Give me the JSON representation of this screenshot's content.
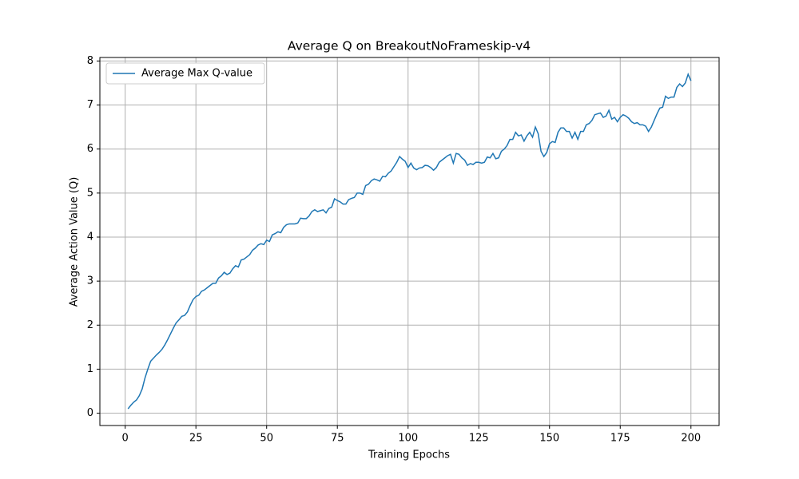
{
  "chart_data": {
    "type": "line",
    "title": "Average Q on BreakoutNoFrameskip-v4",
    "xlabel": "Training Epochs",
    "ylabel": "Average Action Value (Q)",
    "x": [
      1,
      2,
      3,
      4,
      5,
      6,
      7,
      8,
      9,
      10,
      11,
      12,
      13,
      14,
      15,
      16,
      17,
      18,
      19,
      20,
      21,
      22,
      23,
      24,
      25,
      26,
      27,
      28,
      29,
      30,
      31,
      32,
      33,
      34,
      35,
      36,
      37,
      38,
      39,
      40,
      41,
      42,
      43,
      44,
      45,
      46,
      47,
      48,
      49,
      50,
      51,
      52,
      53,
      54,
      55,
      56,
      57,
      58,
      59,
      60,
      61,
      62,
      63,
      64,
      65,
      66,
      67,
      68,
      69,
      70,
      71,
      72,
      73,
      74,
      75,
      76,
      77,
      78,
      79,
      80,
      81,
      82,
      83,
      84,
      85,
      86,
      87,
      88,
      89,
      90,
      91,
      92,
      93,
      94,
      95,
      96,
      97,
      98,
      99,
      100,
      101,
      102,
      103,
      104,
      105,
      106,
      107,
      108,
      109,
      110,
      111,
      112,
      113,
      114,
      115,
      116,
      117,
      118,
      119,
      120,
      121,
      122,
      123,
      124,
      125,
      126,
      127,
      128,
      129,
      130,
      131,
      132,
      133,
      134,
      135,
      136,
      137,
      138,
      139,
      140,
      141,
      142,
      143,
      144,
      145,
      146,
      147,
      148,
      149,
      150,
      151,
      152,
      153,
      154,
      155,
      156,
      157,
      158,
      159,
      160,
      161,
      162,
      163,
      164,
      165,
      166,
      167,
      168,
      169,
      170,
      171,
      172,
      173,
      174,
      175,
      176,
      177,
      178,
      179,
      180,
      181,
      182,
      183,
      184,
      185,
      186,
      187,
      188,
      189,
      190,
      191,
      192,
      193,
      194,
      195,
      196,
      197,
      198,
      199,
      200
    ],
    "series": [
      {
        "name": "Average Max Q-value",
        "color": "#1f77b4",
        "values": [
          0.1,
          0.18,
          0.25,
          0.3,
          0.4,
          0.55,
          0.8,
          1.0,
          1.18,
          1.25,
          1.32,
          1.38,
          1.45,
          1.55,
          1.67,
          1.8,
          1.93,
          2.05,
          2.12,
          2.2,
          2.22,
          2.3,
          2.45,
          2.58,
          2.65,
          2.68,
          2.77,
          2.8,
          2.85,
          2.9,
          2.95,
          2.95,
          3.07,
          3.12,
          3.2,
          3.15,
          3.18,
          3.28,
          3.35,
          3.32,
          3.48,
          3.5,
          3.55,
          3.6,
          3.7,
          3.75,
          3.82,
          3.85,
          3.83,
          3.93,
          3.9,
          4.05,
          4.08,
          4.12,
          4.1,
          4.22,
          4.28,
          4.3,
          4.3,
          4.3,
          4.32,
          4.43,
          4.42,
          4.42,
          4.48,
          4.58,
          4.62,
          4.58,
          4.6,
          4.62,
          4.55,
          4.65,
          4.68,
          4.87,
          4.83,
          4.8,
          4.75,
          4.75,
          4.85,
          4.88,
          4.9,
          5.0,
          5.0,
          4.97,
          5.17,
          5.2,
          5.28,
          5.32,
          5.3,
          5.27,
          5.38,
          5.37,
          5.45,
          5.5,
          5.6,
          5.7,
          5.83,
          5.77,
          5.72,
          5.58,
          5.68,
          5.57,
          5.53,
          5.57,
          5.58,
          5.63,
          5.62,
          5.58,
          5.52,
          5.58,
          5.7,
          5.75,
          5.8,
          5.85,
          5.88,
          5.68,
          5.9,
          5.88,
          5.8,
          5.75,
          5.63,
          5.67,
          5.65,
          5.7,
          5.7,
          5.68,
          5.7,
          5.82,
          5.8,
          5.9,
          5.78,
          5.8,
          5.95,
          6.0,
          6.08,
          6.22,
          6.22,
          6.38,
          6.3,
          6.32,
          6.18,
          6.3,
          6.38,
          6.27,
          6.5,
          6.35,
          5.95,
          5.83,
          5.92,
          6.12,
          6.17,
          6.15,
          6.38,
          6.48,
          6.48,
          6.4,
          6.4,
          6.25,
          6.38,
          6.22,
          6.4,
          6.4,
          6.55,
          6.58,
          6.65,
          6.78,
          6.8,
          6.82,
          6.72,
          6.75,
          6.88,
          6.68,
          6.72,
          6.62,
          6.72,
          6.78,
          6.75,
          6.7,
          6.62,
          6.58,
          6.6,
          6.55,
          6.55,
          6.52,
          6.4,
          6.5,
          6.65,
          6.8,
          6.93,
          6.95,
          7.2,
          7.15,
          7.18,
          7.18,
          7.4,
          7.48,
          7.42,
          7.5,
          7.7,
          7.55
        ]
      }
    ],
    "xlim": [
      -8.95,
      209.95
    ],
    "xticks": [
      0,
      25,
      50,
      75,
      100,
      125,
      150,
      175,
      200
    ],
    "ylim": [
      -0.28,
      8.08
    ],
    "yticks": [
      0,
      1,
      2,
      3,
      4,
      5,
      6,
      7,
      8
    ],
    "grid": true,
    "legend": "upper left"
  }
}
